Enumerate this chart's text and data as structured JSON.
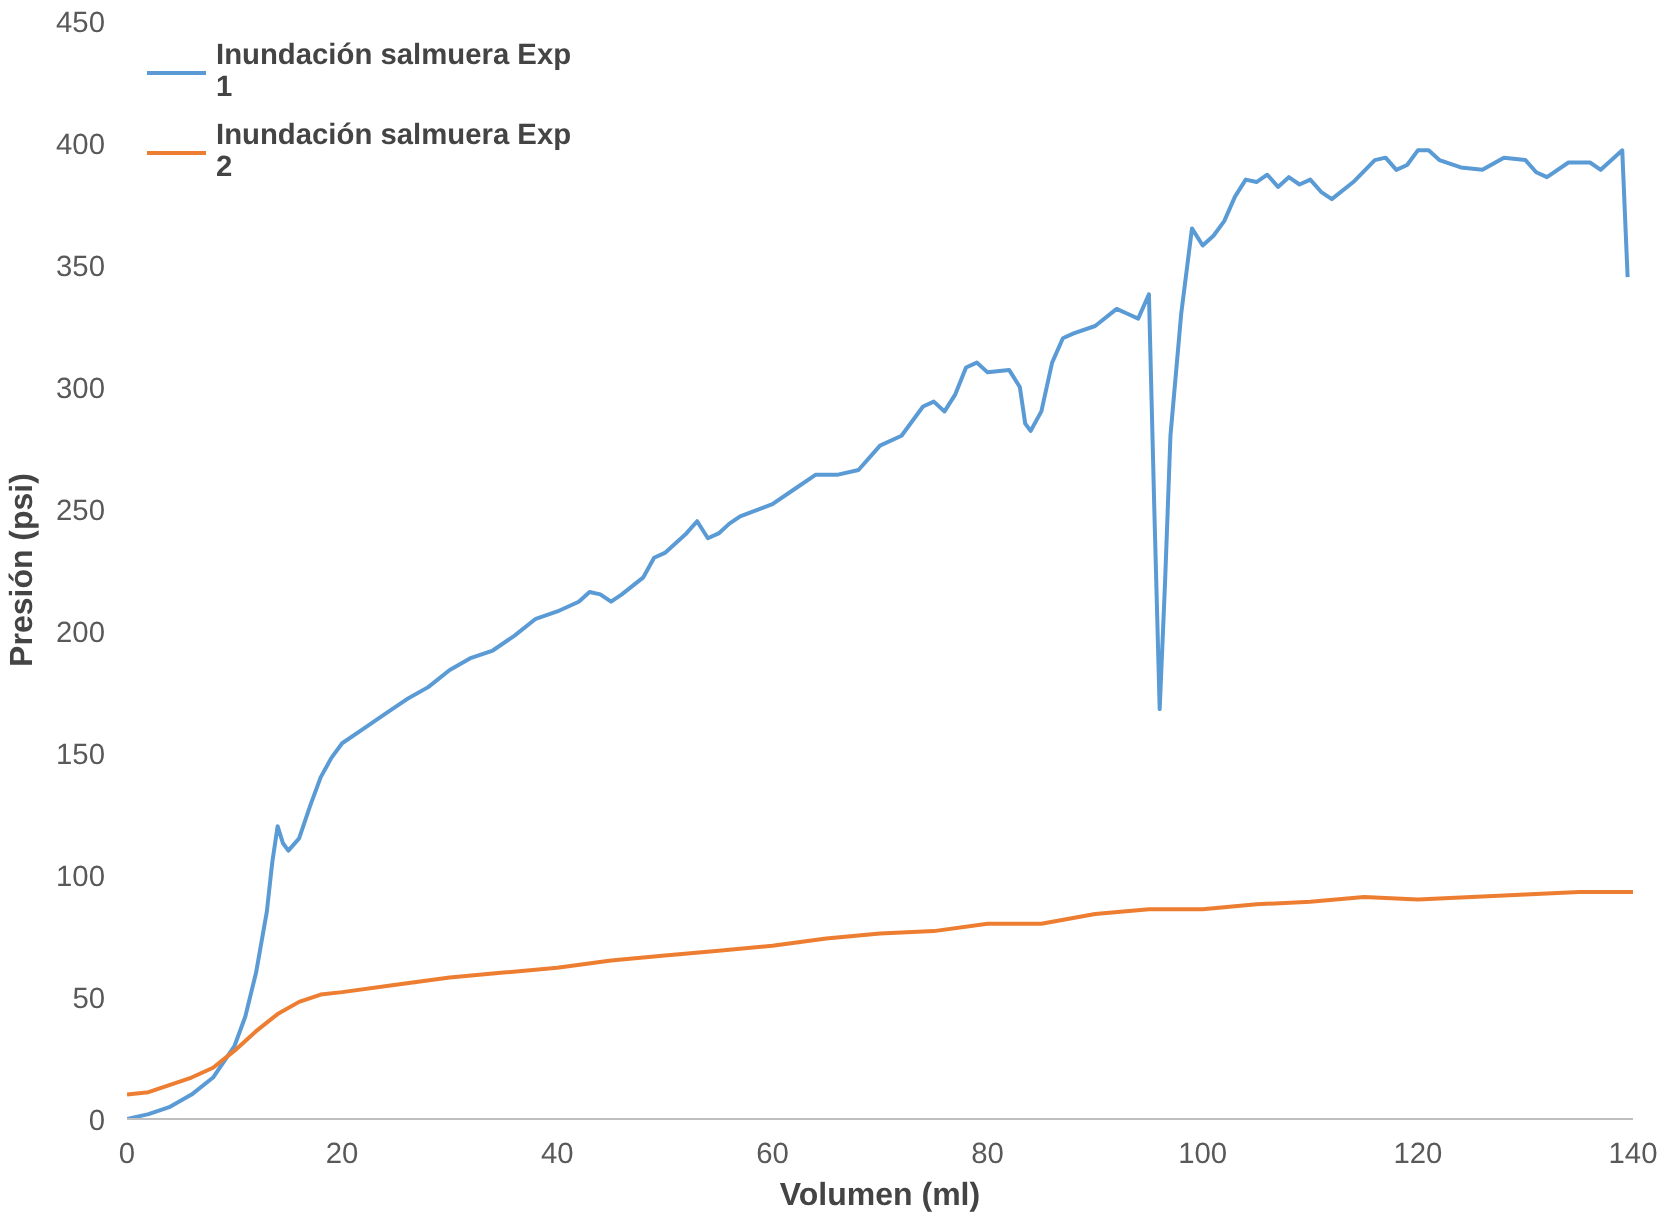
{
  "chart_data": {
    "type": "line",
    "xlabel": "Volumen (ml)",
    "ylabel": "Presión (psi)",
    "xlim": [
      0,
      140
    ],
    "ylim": [
      0,
      450
    ],
    "xticks": [
      0,
      20,
      40,
      60,
      80,
      100,
      120,
      140
    ],
    "yticks": [
      0,
      50,
      100,
      150,
      200,
      250,
      300,
      350,
      400,
      450
    ],
    "grid": false,
    "legend": "top left",
    "marker": "none",
    "line_style": "solid",
    "series": [
      {
        "name": "Inundación salmuera Exp 1",
        "color": "#5b9bd5",
        "x": [
          0,
          2,
          4,
          6,
          8,
          10,
          11,
          12,
          13,
          13.5,
          14,
          14.5,
          15,
          16,
          17,
          18,
          19,
          20,
          22,
          24,
          26,
          28,
          30,
          32,
          34,
          36,
          38,
          40,
          42,
          43,
          44,
          45,
          46,
          48,
          49,
          50,
          52,
          53,
          54,
          55,
          56,
          57,
          60,
          62,
          64,
          66,
          68,
          70,
          72,
          74,
          75,
          76,
          77,
          78,
          79,
          80,
          82,
          83,
          83.5,
          84,
          85,
          86,
          87,
          88,
          90,
          92,
          93,
          94,
          95,
          95.5,
          96,
          96.5,
          97,
          98,
          99,
          100,
          101,
          102,
          103,
          104,
          105,
          106,
          107,
          108,
          109,
          110,
          111,
          112,
          114,
          116,
          117,
          118,
          119,
          120,
          121,
          122,
          124,
          126,
          128,
          130,
          131,
          132,
          134,
          136,
          137,
          139,
          139.5
        ],
        "values": [
          0,
          2,
          5,
          10,
          17,
          30,
          42,
          60,
          85,
          105,
          120,
          113,
          110,
          115,
          128,
          140,
          148,
          154,
          160,
          166,
          172,
          177,
          184,
          189,
          192,
          198,
          205,
          208,
          212,
          216,
          215,
          212,
          215,
          222,
          230,
          232,
          240,
          245,
          238,
          240,
          244,
          247,
          252,
          258,
          264,
          264,
          266,
          276,
          280,
          292,
          294,
          290,
          297,
          308,
          310,
          306,
          307,
          300,
          285,
          282,
          290,
          310,
          320,
          322,
          325,
          332,
          330,
          328,
          338,
          250,
          168,
          220,
          280,
          330,
          365,
          358,
          362,
          368,
          378,
          385,
          384,
          387,
          382,
          386,
          383,
          385,
          380,
          377,
          384,
          393,
          394,
          389,
          391,
          397,
          397,
          393,
          390,
          389,
          394,
          393,
          388,
          386,
          392,
          392,
          389,
          397,
          345
        ]
      },
      {
        "name": "Inundación salmuera Exp 2",
        "color": "#ed7d31",
        "x": [
          0,
          2,
          4,
          6,
          8,
          10,
          12,
          14,
          16,
          18,
          20,
          25,
          30,
          35,
          40,
          45,
          50,
          55,
          60,
          65,
          70,
          75,
          80,
          85,
          90,
          95,
          100,
          105,
          110,
          115,
          120,
          125,
          130,
          135,
          140
        ],
        "values": [
          10,
          11,
          14,
          17,
          21,
          28,
          36,
          43,
          48,
          51,
          52,
          55,
          58,
          60,
          62,
          65,
          67,
          69,
          71,
          74,
          76,
          77,
          80,
          80,
          84,
          86,
          86,
          88,
          89,
          91,
          90,
          91,
          92,
          93,
          93
        ]
      }
    ]
  }
}
